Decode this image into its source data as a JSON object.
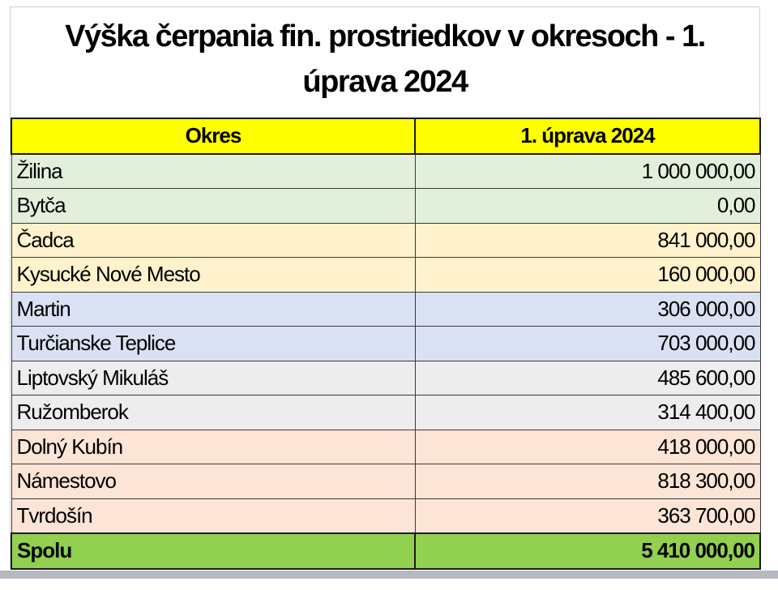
{
  "title": "Výška čerpania fin. prostriedkov v okresoch - 1. úprava 2024",
  "title_lines": [
    "Výška čerpania fin. prostriedkov v okresoch - 1.",
    "úprava 2024"
  ],
  "table": {
    "headers": [
      "Okres",
      "1. úprava 2024"
    ],
    "header_color": "#ffff00",
    "rows": [
      {
        "name": "Žilina",
        "value": "1 000 000,00",
        "color": "#e2efda"
      },
      {
        "name": "Bytča",
        "value": "0,00",
        "color": "#e2efda"
      },
      {
        "name": "Čadca",
        "value": "841 000,00",
        "color": "#fff2cc"
      },
      {
        "name": "Kysucké Nové Mesto",
        "value": "160 000,00",
        "color": "#fff2cc"
      },
      {
        "name": "Martin",
        "value": "306 000,00",
        "color": "#d9e1f2"
      },
      {
        "name": "Turčianske Teplice",
        "value": "703 000,00",
        "color": "#d9e1f2"
      },
      {
        "name": "Liptovský Mikuláš",
        "value": "485 600,00",
        "color": "#ededed"
      },
      {
        "name": "Ružomberok",
        "value": "314 400,00",
        "color": "#ededed"
      },
      {
        "name": "Dolný Kubín",
        "value": "418 000,00",
        "color": "#fce4d6"
      },
      {
        "name": "Námestovo",
        "value": "818 300,00",
        "color": "#fce4d6"
      },
      {
        "name": "Tvrdošín",
        "value": "363 700,00",
        "color": "#fce4d6"
      }
    ],
    "total": {
      "name": "Spolu",
      "value": "5 410 000,00",
      "color": "#92d050"
    }
  }
}
